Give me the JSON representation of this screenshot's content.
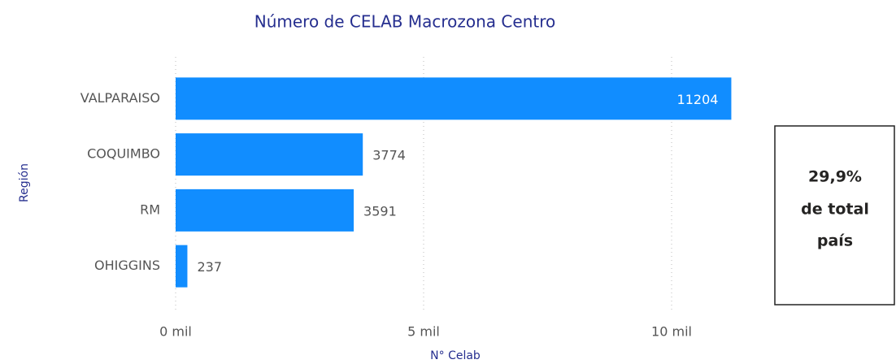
{
  "chart_data": {
    "type": "hbar",
    "title": "Número de CELAB Macrozona Centro",
    "x_label": "N° Celab",
    "y_label": "Región",
    "categories": [
      "VALPARAISO",
      "COQUIMBO",
      "RM",
      "OHIGGINS"
    ],
    "values": [
      11204,
      3774,
      3591,
      237
    ],
    "color": "#118DFF",
    "xlim": [
      0,
      11300
    ],
    "xticks": [
      {
        "value": 0,
        "label": "0 mil"
      },
      {
        "value": 5000,
        "label": "5 mil"
      },
      {
        "value": 10000,
        "label": "10 mil"
      }
    ],
    "grid": true
  },
  "card": {
    "lines": [
      "29,9%",
      "de total",
      "país"
    ]
  }
}
